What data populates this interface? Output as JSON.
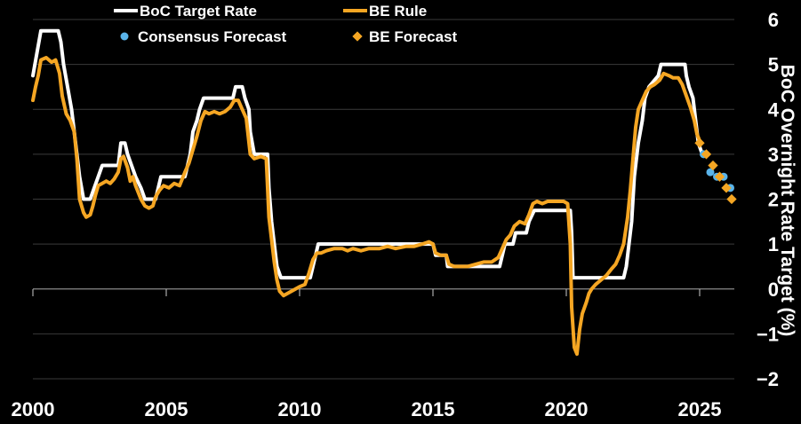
{
  "chart_data": {
    "type": "line",
    "title": "",
    "xlabel": "",
    "ylabel": "BoC Overnight Rate Target (%)",
    "xlim": [
      2000,
      2026.3
    ],
    "ylim": [
      -2,
      6
    ],
    "x_ticks": [
      2000,
      2005,
      2010,
      2015,
      2020,
      2025
    ],
    "y_ticks": [
      -2,
      -1,
      0,
      1,
      2,
      3,
      4,
      5,
      6
    ],
    "x_tick_labels": [
      "2000",
      "2005",
      "2010",
      "2015",
      "2020",
      "2025"
    ],
    "y_tick_labels": [
      "−2",
      "−1",
      "0",
      "1",
      "2",
      "3",
      "4",
      "5",
      "6"
    ],
    "grid": true,
    "legend_position": "top",
    "colors": {
      "boc": "#ffffff",
      "be_rule": "#f5a623",
      "consensus": "#5ab4ea",
      "be_forecast": "#f5a623",
      "background": "#000000",
      "grid": "#3a3a3a"
    },
    "legend": [
      {
        "label": "BoC Target Rate",
        "marker": "line",
        "color": "#ffffff"
      },
      {
        "label": "BE Rule",
        "marker": "line",
        "color": "#f5a623"
      },
      {
        "label": "Consensus Forecast",
        "marker": "dot",
        "color": "#5ab4ea"
      },
      {
        "label": "BE Forecast",
        "marker": "diamond",
        "color": "#f5a623"
      }
    ],
    "series": [
      {
        "name": "BoC Target Rate",
        "kind": "line",
        "points": [
          [
            2000.0,
            4.75
          ],
          [
            2000.15,
            5.25
          ],
          [
            2000.3,
            5.75
          ],
          [
            2000.95,
            5.75
          ],
          [
            2001.05,
            5.5
          ],
          [
            2001.15,
            5.0
          ],
          [
            2001.3,
            4.5
          ],
          [
            2001.45,
            4.0
          ],
          [
            2001.6,
            3.25
          ],
          [
            2001.75,
            2.5
          ],
          [
            2001.9,
            2.0
          ],
          [
            2002.15,
            2.0
          ],
          [
            2002.3,
            2.25
          ],
          [
            2002.45,
            2.5
          ],
          [
            2002.6,
            2.75
          ],
          [
            2003.2,
            2.75
          ],
          [
            2003.3,
            3.25
          ],
          [
            2003.45,
            3.25
          ],
          [
            2003.55,
            3.0
          ],
          [
            2003.7,
            2.75
          ],
          [
            2003.85,
            2.5
          ],
          [
            2004.05,
            2.25
          ],
          [
            2004.2,
            2.0
          ],
          [
            2004.6,
            2.0
          ],
          [
            2004.7,
            2.25
          ],
          [
            2004.8,
            2.5
          ],
          [
            2005.7,
            2.5
          ],
          [
            2005.8,
            2.75
          ],
          [
            2005.9,
            3.0
          ],
          [
            2006.0,
            3.5
          ],
          [
            2006.15,
            3.75
          ],
          [
            2006.25,
            4.0
          ],
          [
            2006.4,
            4.25
          ],
          [
            2007.5,
            4.25
          ],
          [
            2007.6,
            4.5
          ],
          [
            2007.85,
            4.5
          ],
          [
            2007.95,
            4.25
          ],
          [
            2008.1,
            4.0
          ],
          [
            2008.15,
            3.5
          ],
          [
            2008.3,
            3.0
          ],
          [
            2008.8,
            3.0
          ],
          [
            2008.85,
            2.25
          ],
          [
            2008.95,
            1.5
          ],
          [
            2009.05,
            1.0
          ],
          [
            2009.15,
            0.5
          ],
          [
            2009.3,
            0.25
          ],
          [
            2010.4,
            0.25
          ],
          [
            2010.5,
            0.5
          ],
          [
            2010.6,
            0.75
          ],
          [
            2010.7,
            1.0
          ],
          [
            2015.0,
            1.0
          ],
          [
            2015.1,
            0.75
          ],
          [
            2015.5,
            0.75
          ],
          [
            2015.55,
            0.5
          ],
          [
            2017.5,
            0.5
          ],
          [
            2017.6,
            0.75
          ],
          [
            2017.7,
            1.0
          ],
          [
            2018.0,
            1.0
          ],
          [
            2018.1,
            1.25
          ],
          [
            2018.5,
            1.25
          ],
          [
            2018.6,
            1.5
          ],
          [
            2018.8,
            1.75
          ],
          [
            2020.15,
            1.75
          ],
          [
            2020.2,
            1.25
          ],
          [
            2020.25,
            0.25
          ],
          [
            2022.15,
            0.25
          ],
          [
            2022.25,
            0.5
          ],
          [
            2022.35,
            1.0
          ],
          [
            2022.45,
            1.5
          ],
          [
            2022.55,
            2.5
          ],
          [
            2022.7,
            3.25
          ],
          [
            2022.85,
            3.75
          ],
          [
            2022.95,
            4.25
          ],
          [
            2023.1,
            4.5
          ],
          [
            2023.45,
            4.75
          ],
          [
            2023.55,
            5.0
          ],
          [
            2024.45,
            5.0
          ],
          [
            2024.5,
            4.75
          ],
          [
            2024.6,
            4.5
          ],
          [
            2024.75,
            4.25
          ],
          [
            2024.85,
            3.75
          ],
          [
            2024.95,
            3.25
          ],
          [
            2025.1,
            3.0
          ]
        ]
      },
      {
        "name": "BE Rule",
        "kind": "line",
        "points": [
          [
            2000.0,
            4.2
          ],
          [
            2000.1,
            4.5
          ],
          [
            2000.2,
            4.75
          ],
          [
            2000.3,
            5.1
          ],
          [
            2000.5,
            5.15
          ],
          [
            2000.7,
            5.05
          ],
          [
            2000.85,
            5.1
          ],
          [
            2001.0,
            4.8
          ],
          [
            2001.1,
            4.3
          ],
          [
            2001.25,
            3.9
          ],
          [
            2001.4,
            3.75
          ],
          [
            2001.55,
            3.5
          ],
          [
            2001.65,
            2.9
          ],
          [
            2001.75,
            2.0
          ],
          [
            2001.9,
            1.7
          ],
          [
            2002.0,
            1.6
          ],
          [
            2002.15,
            1.65
          ],
          [
            2002.25,
            1.85
          ],
          [
            2002.35,
            2.1
          ],
          [
            2002.45,
            2.3
          ],
          [
            2002.6,
            2.35
          ],
          [
            2002.75,
            2.4
          ],
          [
            2002.9,
            2.35
          ],
          [
            2003.05,
            2.45
          ],
          [
            2003.2,
            2.6
          ],
          [
            2003.3,
            2.9
          ],
          [
            2003.4,
            2.95
          ],
          [
            2003.55,
            2.7
          ],
          [
            2003.65,
            2.4
          ],
          [
            2003.75,
            2.5
          ],
          [
            2003.85,
            2.3
          ],
          [
            2003.95,
            2.15
          ],
          [
            2004.05,
            2.0
          ],
          [
            2004.2,
            1.85
          ],
          [
            2004.35,
            1.8
          ],
          [
            2004.5,
            1.85
          ],
          [
            2004.6,
            2.05
          ],
          [
            2004.75,
            2.2
          ],
          [
            2004.9,
            2.3
          ],
          [
            2005.1,
            2.25
          ],
          [
            2005.3,
            2.35
          ],
          [
            2005.5,
            2.3
          ],
          [
            2005.7,
            2.6
          ],
          [
            2005.85,
            2.8
          ],
          [
            2006.0,
            3.1
          ],
          [
            2006.15,
            3.4
          ],
          [
            2006.3,
            3.75
          ],
          [
            2006.45,
            3.95
          ],
          [
            2006.6,
            3.9
          ],
          [
            2006.8,
            3.95
          ],
          [
            2007.0,
            3.9
          ],
          [
            2007.2,
            3.95
          ],
          [
            2007.4,
            4.05
          ],
          [
            2007.55,
            4.2
          ],
          [
            2007.7,
            4.2
          ],
          [
            2007.85,
            4.0
          ],
          [
            2008.0,
            3.8
          ],
          [
            2008.15,
            3.0
          ],
          [
            2008.3,
            2.9
          ],
          [
            2008.55,
            2.95
          ],
          [
            2008.75,
            2.9
          ],
          [
            2008.85,
            1.6
          ],
          [
            2008.95,
            1.1
          ],
          [
            2009.05,
            0.6
          ],
          [
            2009.15,
            0.2
          ],
          [
            2009.25,
            -0.05
          ],
          [
            2009.4,
            -0.15
          ],
          [
            2009.55,
            -0.1
          ],
          [
            2009.7,
            -0.05
          ],
          [
            2009.85,
            0.0
          ],
          [
            2010.0,
            0.05
          ],
          [
            2010.2,
            0.1
          ],
          [
            2010.35,
            0.35
          ],
          [
            2010.5,
            0.65
          ],
          [
            2010.65,
            0.8
          ],
          [
            2010.8,
            0.8
          ],
          [
            2011.0,
            0.85
          ],
          [
            2011.3,
            0.9
          ],
          [
            2011.6,
            0.9
          ],
          [
            2011.8,
            0.85
          ],
          [
            2012.0,
            0.9
          ],
          [
            2012.3,
            0.85
          ],
          [
            2012.6,
            0.9
          ],
          [
            2013.0,
            0.9
          ],
          [
            2013.3,
            0.95
          ],
          [
            2013.6,
            0.9
          ],
          [
            2014.0,
            0.95
          ],
          [
            2014.3,
            0.95
          ],
          [
            2014.6,
            1.0
          ],
          [
            2014.85,
            1.05
          ],
          [
            2015.0,
            1.0
          ],
          [
            2015.1,
            0.8
          ],
          [
            2015.3,
            0.75
          ],
          [
            2015.5,
            0.75
          ],
          [
            2015.6,
            0.55
          ],
          [
            2015.8,
            0.5
          ],
          [
            2016.0,
            0.5
          ],
          [
            2016.3,
            0.5
          ],
          [
            2016.6,
            0.55
          ],
          [
            2016.9,
            0.6
          ],
          [
            2017.2,
            0.6
          ],
          [
            2017.45,
            0.7
          ],
          [
            2017.6,
            0.9
          ],
          [
            2017.75,
            1.1
          ],
          [
            2017.9,
            1.2
          ],
          [
            2018.05,
            1.4
          ],
          [
            2018.25,
            1.5
          ],
          [
            2018.45,
            1.45
          ],
          [
            2018.6,
            1.65
          ],
          [
            2018.75,
            1.9
          ],
          [
            2018.9,
            1.95
          ],
          [
            2019.1,
            1.9
          ],
          [
            2019.3,
            1.95
          ],
          [
            2019.5,
            1.95
          ],
          [
            2019.7,
            1.95
          ],
          [
            2019.9,
            1.95
          ],
          [
            2020.05,
            1.9
          ],
          [
            2020.15,
            1.0
          ],
          [
            2020.2,
            -0.4
          ],
          [
            2020.3,
            -1.3
          ],
          [
            2020.4,
            -1.45
          ],
          [
            2020.5,
            -0.9
          ],
          [
            2020.6,
            -0.55
          ],
          [
            2020.75,
            -0.3
          ],
          [
            2020.85,
            -0.1
          ],
          [
            2020.95,
            0.0
          ],
          [
            2021.1,
            0.1
          ],
          [
            2021.3,
            0.2
          ],
          [
            2021.5,
            0.3
          ],
          [
            2021.7,
            0.45
          ],
          [
            2021.85,
            0.55
          ],
          [
            2022.0,
            0.75
          ],
          [
            2022.15,
            1.0
          ],
          [
            2022.3,
            1.6
          ],
          [
            2022.4,
            2.2
          ],
          [
            2022.5,
            2.9
          ],
          [
            2022.6,
            3.6
          ],
          [
            2022.7,
            4.0
          ],
          [
            2022.85,
            4.2
          ],
          [
            2023.0,
            4.4
          ],
          [
            2023.15,
            4.5
          ],
          [
            2023.3,
            4.55
          ],
          [
            2023.5,
            4.65
          ],
          [
            2023.65,
            4.8
          ],
          [
            2023.85,
            4.75
          ],
          [
            2024.0,
            4.7
          ],
          [
            2024.2,
            4.7
          ],
          [
            2024.35,
            4.55
          ],
          [
            2024.5,
            4.3
          ],
          [
            2024.65,
            4.05
          ],
          [
            2024.8,
            3.75
          ],
          [
            2024.9,
            3.45
          ],
          [
            2025.0,
            3.3
          ]
        ]
      },
      {
        "name": "Consensus Forecast",
        "kind": "markers",
        "marker": "dot",
        "points": [
          [
            2025.15,
            3.0
          ],
          [
            2025.4,
            2.6
          ],
          [
            2025.65,
            2.5
          ],
          [
            2025.9,
            2.5
          ],
          [
            2026.15,
            2.25
          ]
        ]
      },
      {
        "name": "BE Forecast",
        "kind": "markers",
        "marker": "diamond",
        "points": [
          [
            2025.0,
            3.25
          ],
          [
            2025.25,
            3.0
          ],
          [
            2025.5,
            2.75
          ],
          [
            2025.75,
            2.5
          ],
          [
            2026.0,
            2.25
          ],
          [
            2026.2,
            2.0
          ]
        ]
      }
    ]
  }
}
